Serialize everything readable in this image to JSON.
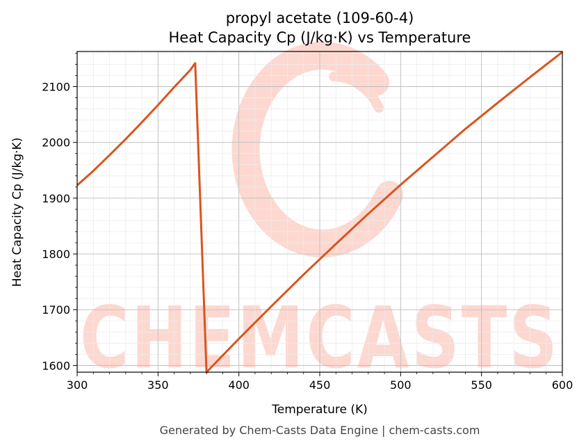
{
  "chart_data": {
    "type": "line",
    "title": "propyl acetate (109-60-4)",
    "subtitle": "Heat Capacity Cp (J/kg·K) vs Temperature",
    "xlabel": "Temperature (K)",
    "ylabel": "Heat Capacity Cp (J/kg·K)",
    "xlim": [
      300,
      600
    ],
    "ylim": [
      1588,
      2163
    ],
    "xticks": [
      300,
      350,
      400,
      450,
      500,
      550,
      600
    ],
    "yticks": [
      1600,
      1700,
      1800,
      1900,
      2000,
      2100
    ],
    "grid": true,
    "legend": "none",
    "series": [
      {
        "color": "#d9541e",
        "x": [
          300,
          310,
          320,
          330,
          340,
          350,
          360,
          370,
          373,
          380,
          400,
          420,
          440,
          460,
          480,
          500,
          520,
          540,
          560,
          580,
          600
        ],
        "y": [
          1923,
          1949,
          1977,
          2006,
          2036,
          2067,
          2099,
          2130,
          2142,
          1588,
          1648,
          1706,
          1763,
          1818,
          1872,
          1924,
          1974,
          2024,
          2071,
          2117,
          2162
        ]
      }
    ]
  },
  "watermark": {
    "text": "CHEMCASTS",
    "color": "#fdd8d0"
  },
  "footer": "Generated by Chem-Casts Data Engine | chem-casts.com"
}
